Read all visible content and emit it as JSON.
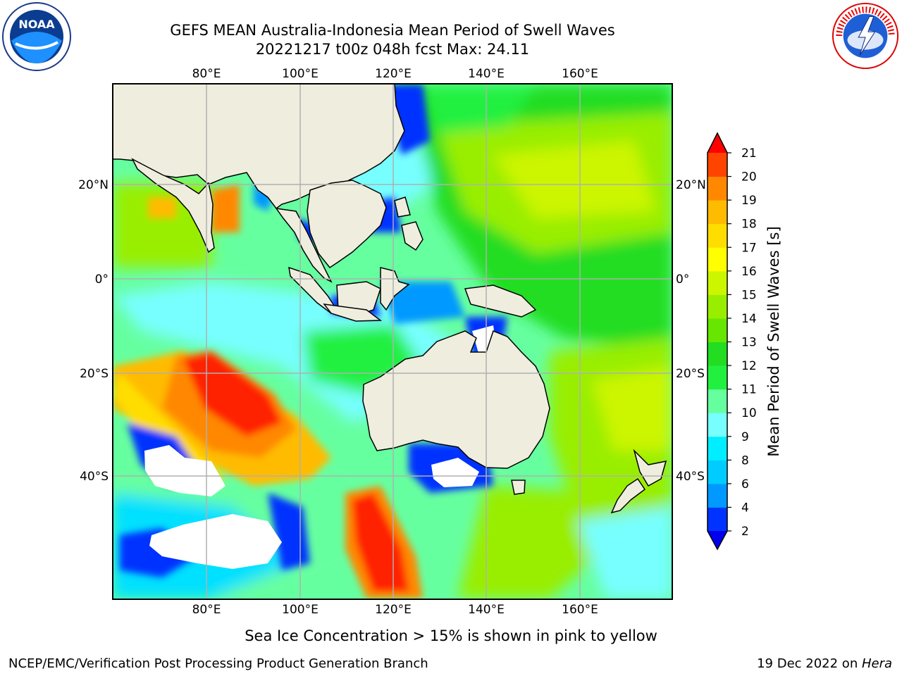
{
  "header": {
    "title_line1": "GEFS MEAN Australia-Indonesia Mean Period of Swell Waves",
    "title_line2": "20221217 t00z 048h fcst   Max: 24.11"
  },
  "logos": {
    "left": "noaa-logo",
    "right": "nws-logo"
  },
  "axes": {
    "lon_ticks": [
      "80°E",
      "100°E",
      "120°E",
      "140°E",
      "160°E"
    ],
    "lat_ticks": [
      "20°N",
      "0°",
      "20°S",
      "40°S"
    ]
  },
  "colorbar": {
    "label": "Mean Period of Swell Waves [s]",
    "levels": [
      2,
      4,
      6,
      8,
      9,
      10,
      11,
      12,
      13,
      14,
      15,
      16,
      17,
      18,
      19,
      20,
      21
    ],
    "colors": [
      "#0033ff",
      "#0099ff",
      "#00ccff",
      "#00eeff",
      "#77ffff",
      "#66ffa0",
      "#22f040",
      "#22dd22",
      "#66e600",
      "#99ee00",
      "#ccf500",
      "#ffff00",
      "#ffdd00",
      "#ffbb00",
      "#ff8800",
      "#ff4400",
      "#ff1100"
    ],
    "under_color": "#0000ee",
    "over_color": "#ff0000"
  },
  "colors": {
    "land": "#efedde",
    "grid": "#b0b0b0"
  },
  "footnote": "Sea Ice Concentration > 15% is shown in pink to yellow",
  "credits": {
    "left": "NCEP/EMC/Verification Post Processing Product Generation Branch",
    "right_prefix": "19 Dec 2022 on ",
    "right_host": "Hera"
  }
}
